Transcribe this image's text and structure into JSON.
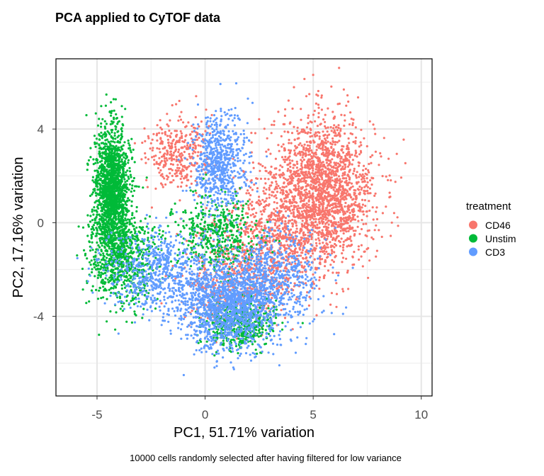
{
  "chart_data": {
    "type": "scatter",
    "title": "PCA applied to CyTOF data",
    "xlabel": "PC1, 51.71% variation",
    "ylabel": "PC2, 17.16% variation",
    "caption": "10000 cells randomly selected after having filtered for low variance",
    "xlim": [
      -6.9,
      10.5
    ],
    "ylim": [
      -7.4,
      7.0
    ],
    "x_ticks": [
      -5,
      0,
      5,
      10
    ],
    "y_ticks": [
      -4,
      0,
      4
    ],
    "x_minor_ticks": [
      -2.5,
      2.5,
      7.5
    ],
    "y_minor_ticks": [
      -6,
      -2,
      2,
      6
    ],
    "grid": true,
    "legend": {
      "title": "treatment",
      "placement": "right",
      "entries": [
        {
          "label": "CD46",
          "color": "#F8766D"
        },
        {
          "label": "Unstim",
          "color": "#00BA38"
        },
        {
          "label": "CD3",
          "color": "#619CFF"
        }
      ]
    },
    "series": [
      {
        "name": "CD46",
        "color": "#F8766D",
        "approx_points": 3400,
        "clusters": [
          {
            "cx": 5.4,
            "cy": 1.3,
            "sx": 1.2,
            "sy": 1.6,
            "weight": 0.6
          },
          {
            "cx": 3.0,
            "cy": -0.6,
            "sx": 1.3,
            "sy": 1.3,
            "weight": 0.18
          },
          {
            "cx": -1.3,
            "cy": 3.0,
            "sx": 0.7,
            "sy": 0.8,
            "weight": 0.1
          },
          {
            "cx": 1.5,
            "cy": -2.6,
            "sx": 1.2,
            "sy": 0.9,
            "weight": 0.12
          }
        ]
      },
      {
        "name": "Unstim",
        "color": "#00BA38",
        "approx_points": 3300,
        "clusters": [
          {
            "cx": -4.3,
            "cy": 1.4,
            "sx": 0.4,
            "sy": 1.3,
            "weight": 0.5
          },
          {
            "cx": -3.9,
            "cy": -1.6,
            "sx": 0.8,
            "sy": 1.0,
            "weight": 0.22
          },
          {
            "cx": 0.5,
            "cy": -0.5,
            "sx": 1.0,
            "sy": 0.8,
            "weight": 0.13
          },
          {
            "cx": 1.6,
            "cy": -4.3,
            "sx": 0.8,
            "sy": 0.5,
            "weight": 0.15
          }
        ]
      },
      {
        "name": "CD3",
        "color": "#619CFF",
        "approx_points": 3300,
        "clusters": [
          {
            "cx": 1.0,
            "cy": -3.6,
            "sx": 1.1,
            "sy": 0.9,
            "weight": 0.42
          },
          {
            "cx": -2.2,
            "cy": -2.1,
            "sx": 1.3,
            "sy": 0.9,
            "weight": 0.2
          },
          {
            "cx": 0.6,
            "cy": 2.6,
            "sx": 0.6,
            "sy": 1.1,
            "weight": 0.2
          },
          {
            "cx": 3.2,
            "cy": -2.4,
            "sx": 1.1,
            "sy": 1.0,
            "weight": 0.18
          }
        ]
      }
    ]
  }
}
